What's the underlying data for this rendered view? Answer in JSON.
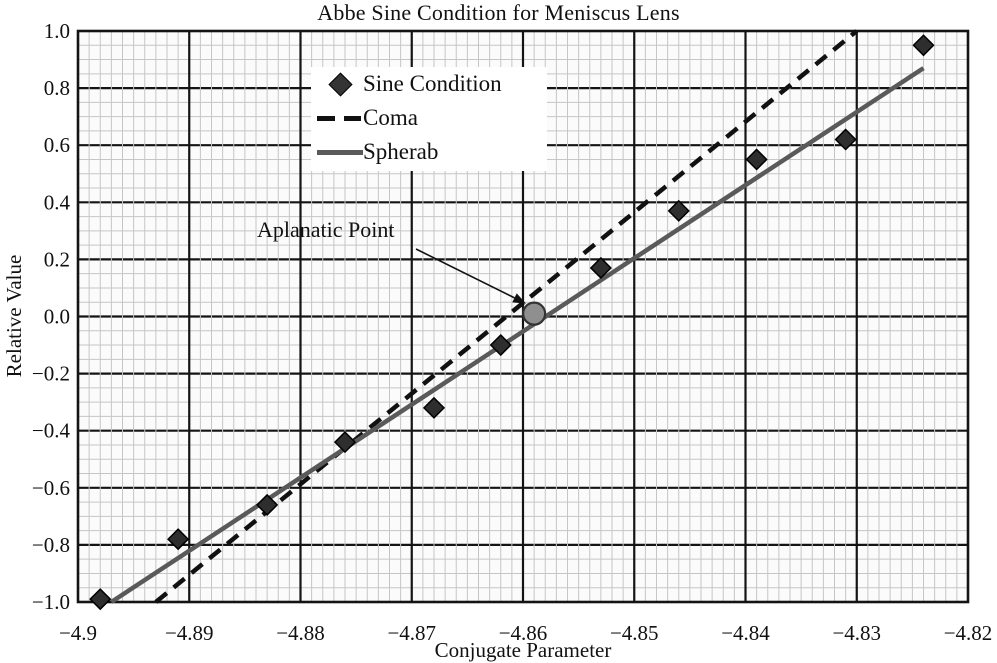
{
  "chart_data": {
    "type": "scatter",
    "title": "Abbe Sine Condition for Meniscus Lens",
    "xlabel": "Conjugate Parameter",
    "ylabel": "Relative Value",
    "x_range": [
      -4.9,
      -4.82
    ],
    "y_range": [
      -1.0,
      1.0
    ],
    "x_major_step": 0.01,
    "x_minor_step": 0.001,
    "y_major_step": 0.2,
    "y_minor_step": 0.05,
    "grid": true,
    "x_tick_labels": [
      "−4.9",
      "−4.89",
      "−4.88",
      "−4.87",
      "−4.86",
      "−4.85",
      "−4.84",
      "−4.83",
      "−4.82"
    ],
    "y_tick_labels": [
      "1.0",
      "0.8",
      "0.6",
      "0.4",
      "0.2",
      "0.0",
      "−0.2",
      "−0.4",
      "−0.6",
      "−0.8",
      "−1.0"
    ],
    "legend_position": "top-left-inside",
    "series": [
      {
        "name": "Sine Condition",
        "type": "scatter",
        "marker": "diamond",
        "color": "#2e2e2e",
        "points": [
          [
            -4.898,
            -0.99
          ],
          [
            -4.891,
            -0.78
          ],
          [
            -4.883,
            -0.66
          ],
          [
            -4.876,
            -0.44
          ],
          [
            -4.868,
            -0.32
          ],
          [
            -4.862,
            -0.1
          ],
          [
            -4.853,
            0.17
          ],
          [
            -4.846,
            0.37
          ],
          [
            -4.839,
            0.55
          ],
          [
            -4.831,
            0.62
          ],
          [
            -4.824,
            0.95
          ]
        ]
      },
      {
        "name": "Coma",
        "type": "line",
        "style": "dashed",
        "color": "#111111",
        "points": [
          [
            -4.893,
            -1.0
          ],
          [
            -4.83,
            1.0
          ]
        ]
      },
      {
        "name": "Spherab",
        "type": "line",
        "style": "solid",
        "color": "#5a5a5a",
        "points": [
          [
            -4.897,
            -1.0
          ],
          [
            -4.824,
            0.87
          ]
        ]
      }
    ],
    "annotation": {
      "label": "Aplanatic Point",
      "point": [
        -4.859,
        0.01
      ],
      "marker": "circle",
      "marker_fill": "#8f8f8f",
      "marker_edge": "#333333"
    },
    "colors": {
      "plot_bg": "#fbfbfb",
      "minor_grid": "#c6c6c6",
      "major_grid": "#141414",
      "frame": "#141414",
      "text": "#111111"
    }
  }
}
